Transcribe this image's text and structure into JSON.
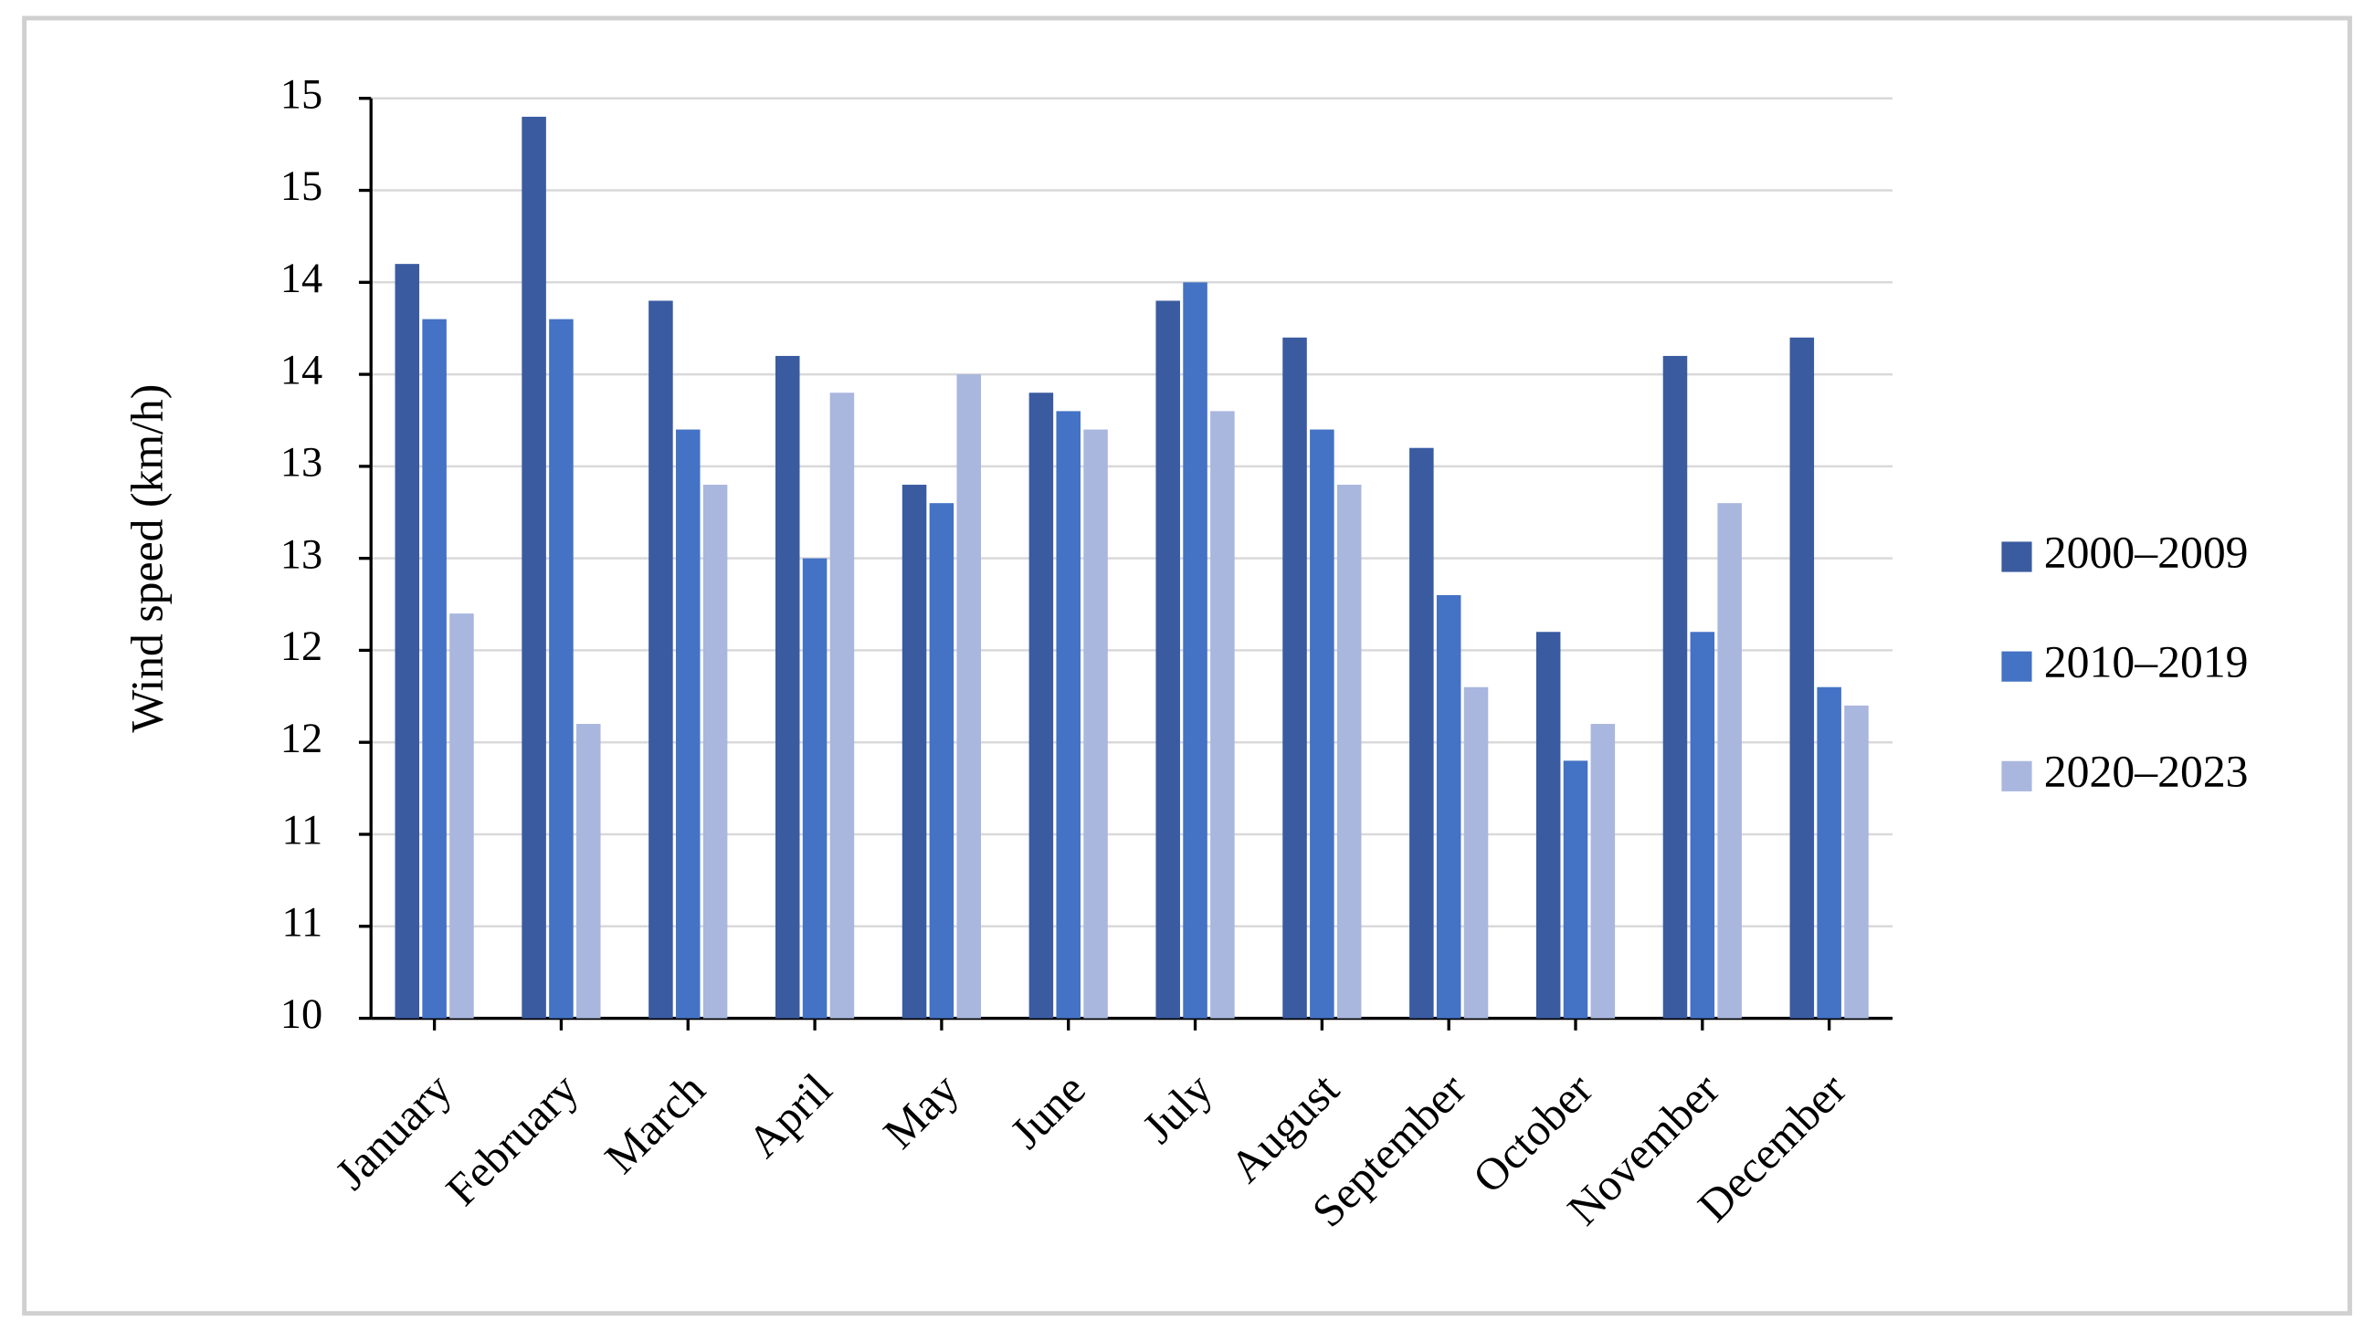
{
  "chart_data": {
    "type": "bar",
    "y_label": "Wind speed (km/h)",
    "categories": [
      "January",
      "February",
      "March",
      "April",
      "May",
      "June",
      "July",
      "August",
      "September",
      "October",
      "November",
      "December"
    ],
    "series": [
      {
        "name": "2000–2009",
        "color": "#3a5ba0",
        "values": [
          14.1,
          14.9,
          13.9,
          13.6,
          12.9,
          13.4,
          13.9,
          13.7,
          13.1,
          12.1,
          13.6,
          13.7
        ]
      },
      {
        "name": "2010–2019",
        "color": "#4472c4",
        "values": [
          13.8,
          13.8,
          13.2,
          12.5,
          12.8,
          13.3,
          14.0,
          13.2,
          12.3,
          11.4,
          12.1,
          11.8
        ]
      },
      {
        "name": "2020–2023",
        "color": "#a9b6de",
        "values": [
          12.2,
          11.6,
          12.9,
          13.4,
          13.5,
          13.2,
          13.3,
          12.9,
          11.8,
          11.6,
          12.8,
          11.7
        ]
      }
    ],
    "ylim": [
      10,
      15
    ],
    "yticks": [
      10,
      {
        "value": 10.5,
        "label": "11"
      },
      11,
      {
        "value": 11.5,
        "label": "12"
      },
      12,
      {
        "value": 12.5,
        "label": "13"
      },
      13,
      {
        "value": 13.5,
        "label": "14"
      },
      14,
      {
        "value": 14.5,
        "label": "15"
      },
      15
    ],
    "grid": true,
    "legend": "right"
  }
}
